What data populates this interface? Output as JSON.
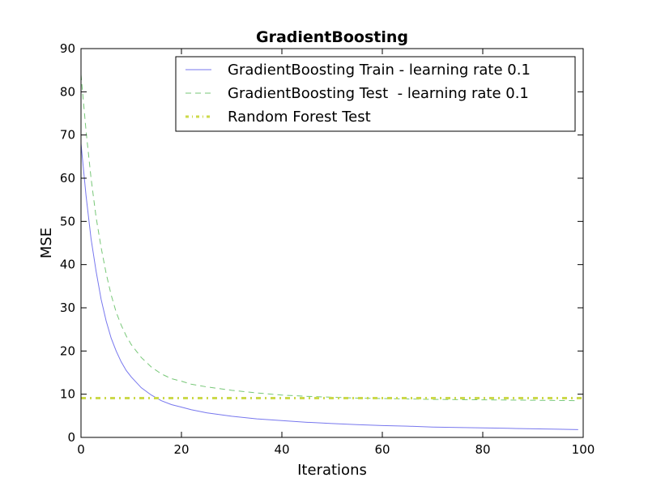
{
  "chart_data": {
    "type": "line",
    "title": "GradientBoosting",
    "xlabel": "Iterations",
    "ylabel": "MSE",
    "xlim": [
      0,
      100
    ],
    "ylim": [
      0,
      90
    ],
    "xticks": [
      0,
      20,
      40,
      60,
      80,
      100
    ],
    "yticks": [
      0,
      10,
      20,
      30,
      40,
      50,
      60,
      70,
      80,
      90
    ],
    "grid": false,
    "legend_position": "top-right",
    "series": [
      {
        "name": "GradientBoosting Train - learning rate 0.1",
        "color": "#7777ee",
        "style": "solid",
        "x": [
          0,
          1,
          2,
          3,
          4,
          5,
          6,
          7,
          8,
          9,
          10,
          12,
          14,
          16,
          18,
          20,
          22,
          25,
          30,
          35,
          40,
          45,
          50,
          55,
          60,
          65,
          70,
          75,
          80,
          85,
          90,
          95,
          99
        ],
        "y": [
          68,
          56,
          46,
          38.5,
          32,
          27,
          23,
          20,
          17.5,
          15.5,
          14,
          11.5,
          9.8,
          8.5,
          7.6,
          7.0,
          6.4,
          5.7,
          4.9,
          4.3,
          3.9,
          3.5,
          3.2,
          2.95,
          2.75,
          2.6,
          2.4,
          2.3,
          2.2,
          2.1,
          2.0,
          1.9,
          1.8
        ]
      },
      {
        "name": "GradientBoosting Test  - learning rate 0.1",
        "color": "#77c777",
        "style": "dashed",
        "x": [
          0,
          1,
          2,
          3,
          4,
          5,
          6,
          7,
          8,
          9,
          10,
          12,
          14,
          16,
          18,
          20,
          22,
          25,
          30,
          35,
          40,
          45,
          50,
          55,
          60,
          65,
          70,
          75,
          80,
          85,
          90,
          95,
          99
        ],
        "y": [
          84,
          71,
          60,
          51,
          44,
          38,
          33,
          29,
          26,
          23.5,
          21.5,
          18.5,
          16.3,
          14.7,
          13.6,
          13.0,
          12.3,
          11.7,
          10.9,
          10.3,
          9.8,
          9.5,
          9.3,
          9.1,
          9.0,
          8.9,
          8.8,
          8.75,
          8.7,
          8.65,
          8.6,
          8.55,
          8.5
        ]
      },
      {
        "name": "Random Forest Test",
        "color": "#ccd94a",
        "style": "dashdot",
        "x": [
          0,
          100
        ],
        "y": [
          9.1,
          9.1
        ]
      }
    ]
  }
}
